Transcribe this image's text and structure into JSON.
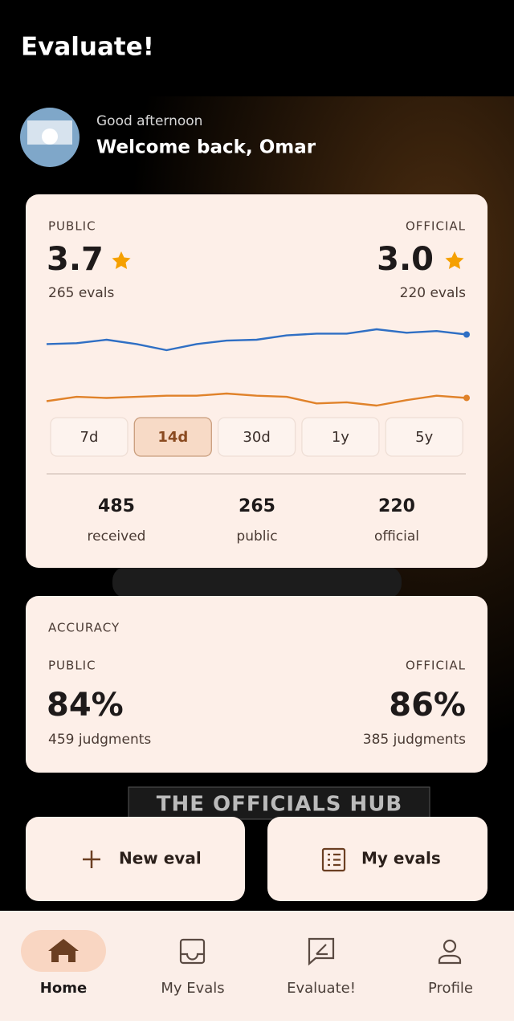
{
  "app_bar": {
    "title": "Evaluate!"
  },
  "greeting": {
    "subtitle": "Good afternoon",
    "title": "Welcome back, Omar"
  },
  "background_banner": "THE OFFICIALS HUB",
  "ratings": {
    "public": {
      "label": "PUBLIC",
      "score": "3.7",
      "count": "265 evals"
    },
    "official": {
      "label": "OFFICIAL",
      "score": "3.0",
      "count": "220 evals"
    },
    "trend": {
      "public": [
        3.62,
        3.63,
        3.67,
        3.62,
        3.55,
        3.62,
        3.66,
        3.67,
        3.72,
        3.74,
        3.74,
        3.79,
        3.75,
        3.77,
        3.73
      ],
      "public_color": "#2f6fc4",
      "official": [
        2.95,
        2.99,
        2.98,
        2.99,
        3.0,
        3.0,
        3.02,
        3.0,
        2.99,
        2.93,
        2.94,
        2.91,
        2.96,
        3.0,
        2.98
      ],
      "official_color": "#e0822a"
    },
    "ranges": [
      "7d",
      "14d",
      "30d",
      "1y",
      "5y"
    ],
    "selected_range": 1,
    "stats": [
      {
        "value": "485",
        "label": "received"
      },
      {
        "value": "265",
        "label": "public"
      },
      {
        "value": "220",
        "label": "official"
      }
    ]
  },
  "accuracy": {
    "title": "ACCURACY",
    "public": {
      "label": "PUBLIC",
      "value": "84%",
      "count": "459 judgments"
    },
    "official": {
      "label": "OFFICIAL",
      "value": "86%",
      "count": "385 judgments"
    }
  },
  "actions": [
    "New eval",
    "My evals"
  ],
  "nav": {
    "items": [
      "Home",
      "My Evals",
      "Evaluate!",
      "Profile"
    ],
    "selected": 0
  }
}
